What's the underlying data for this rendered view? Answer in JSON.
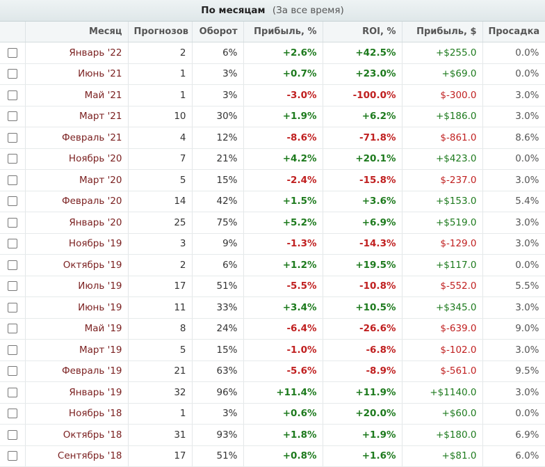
{
  "header": {
    "title": "По месяцам",
    "subtitle": "(За все время)"
  },
  "columns": [
    "",
    "Месяц",
    "Прогнозов",
    "Оборот",
    "Прибыль, %",
    "ROI, %",
    "Прибыль, $",
    "Просадка"
  ],
  "rows": [
    {
      "month": "Январь '22",
      "forecasts": "2",
      "turnover": "6%",
      "profit_pct": "+2.6%",
      "roi": "+42.5%",
      "profit_usd": "+$255.0",
      "drawdown": "0.0%",
      "sign": "pos"
    },
    {
      "month": "Июнь '21",
      "forecasts": "1",
      "turnover": "3%",
      "profit_pct": "+0.7%",
      "roi": "+23.0%",
      "profit_usd": "+$69.0",
      "drawdown": "0.0%",
      "sign": "pos"
    },
    {
      "month": "Май '21",
      "forecasts": "1",
      "turnover": "3%",
      "profit_pct": "-3.0%",
      "roi": "-100.0%",
      "profit_usd": "$-300.0",
      "drawdown": "3.0%",
      "sign": "neg"
    },
    {
      "month": "Март '21",
      "forecasts": "10",
      "turnover": "30%",
      "profit_pct": "+1.9%",
      "roi": "+6.2%",
      "profit_usd": "+$186.0",
      "drawdown": "3.0%",
      "sign": "pos"
    },
    {
      "month": "Февраль '21",
      "forecasts": "4",
      "turnover": "12%",
      "profit_pct": "-8.6%",
      "roi": "-71.8%",
      "profit_usd": "$-861.0",
      "drawdown": "8.6%",
      "sign": "neg"
    },
    {
      "month": "Ноябрь '20",
      "forecasts": "7",
      "turnover": "21%",
      "profit_pct": "+4.2%",
      "roi": "+20.1%",
      "profit_usd": "+$423.0",
      "drawdown": "0.0%",
      "sign": "pos"
    },
    {
      "month": "Март '20",
      "forecasts": "5",
      "turnover": "15%",
      "profit_pct": "-2.4%",
      "roi": "-15.8%",
      "profit_usd": "$-237.0",
      "drawdown": "3.0%",
      "sign": "neg"
    },
    {
      "month": "Февраль '20",
      "forecasts": "14",
      "turnover": "42%",
      "profit_pct": "+1.5%",
      "roi": "+3.6%",
      "profit_usd": "+$153.0",
      "drawdown": "5.4%",
      "sign": "pos"
    },
    {
      "month": "Январь '20",
      "forecasts": "25",
      "turnover": "75%",
      "profit_pct": "+5.2%",
      "roi": "+6.9%",
      "profit_usd": "+$519.0",
      "drawdown": "3.0%",
      "sign": "pos"
    },
    {
      "month": "Ноябрь '19",
      "forecasts": "3",
      "turnover": "9%",
      "profit_pct": "-1.3%",
      "roi": "-14.3%",
      "profit_usd": "$-129.0",
      "drawdown": "3.0%",
      "sign": "neg"
    },
    {
      "month": "Октябрь '19",
      "forecasts": "2",
      "turnover": "6%",
      "profit_pct": "+1.2%",
      "roi": "+19.5%",
      "profit_usd": "+$117.0",
      "drawdown": "0.0%",
      "sign": "pos"
    },
    {
      "month": "Июль '19",
      "forecasts": "17",
      "turnover": "51%",
      "profit_pct": "-5.5%",
      "roi": "-10.8%",
      "profit_usd": "$-552.0",
      "drawdown": "5.5%",
      "sign": "neg"
    },
    {
      "month": "Июнь '19",
      "forecasts": "11",
      "turnover": "33%",
      "profit_pct": "+3.4%",
      "roi": "+10.5%",
      "profit_usd": "+$345.0",
      "drawdown": "3.0%",
      "sign": "pos"
    },
    {
      "month": "Май '19",
      "forecasts": "8",
      "turnover": "24%",
      "profit_pct": "-6.4%",
      "roi": "-26.6%",
      "profit_usd": "$-639.0",
      "drawdown": "9.0%",
      "sign": "neg"
    },
    {
      "month": "Март '19",
      "forecasts": "5",
      "turnover": "15%",
      "profit_pct": "-1.0%",
      "roi": "-6.8%",
      "profit_usd": "$-102.0",
      "drawdown": "3.0%",
      "sign": "neg"
    },
    {
      "month": "Февраль '19",
      "forecasts": "21",
      "turnover": "63%",
      "profit_pct": "-5.6%",
      "roi": "-8.9%",
      "profit_usd": "$-561.0",
      "drawdown": "9.5%",
      "sign": "neg"
    },
    {
      "month": "Январь '19",
      "forecasts": "32",
      "turnover": "96%",
      "profit_pct": "+11.4%",
      "roi": "+11.9%",
      "profit_usd": "+$1140.0",
      "drawdown": "3.0%",
      "sign": "pos"
    },
    {
      "month": "Ноябрь '18",
      "forecasts": "1",
      "turnover": "3%",
      "profit_pct": "+0.6%",
      "roi": "+20.0%",
      "profit_usd": "+$60.0",
      "drawdown": "0.0%",
      "sign": "pos"
    },
    {
      "month": "Октябрь '18",
      "forecasts": "31",
      "turnover": "93%",
      "profit_pct": "+1.8%",
      "roi": "+1.9%",
      "profit_usd": "+$180.0",
      "drawdown": "6.9%",
      "sign": "pos"
    },
    {
      "month": "Сентябрь '18",
      "forecasts": "17",
      "turnover": "51%",
      "profit_pct": "+0.8%",
      "roi": "+1.6%",
      "profit_usd": "+$81.0",
      "drawdown": "6.0%",
      "sign": "pos"
    }
  ],
  "colors": {
    "positive": "#1d7a1d",
    "negative": "#c02020",
    "month": "#7a1f1f"
  }
}
